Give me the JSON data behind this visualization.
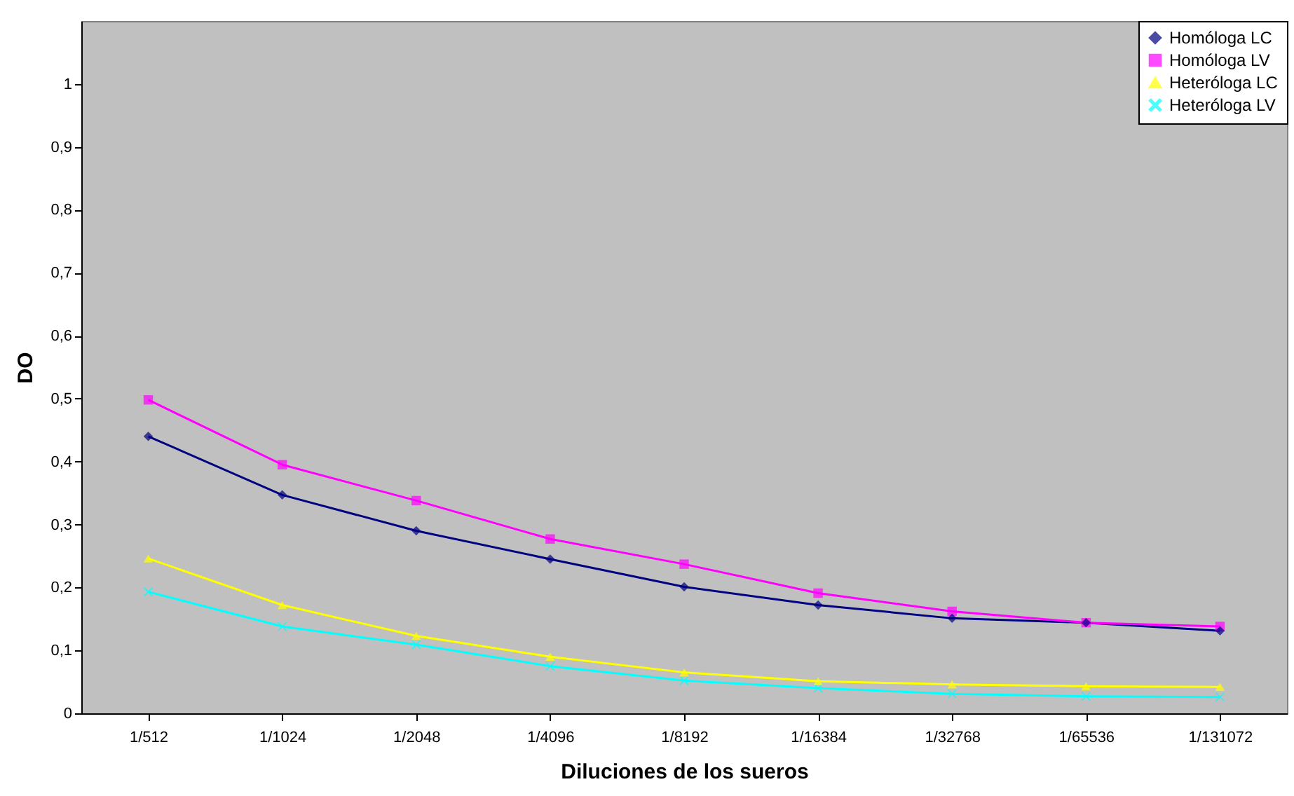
{
  "chart_data": {
    "type": "line",
    "xlabel": "Diluciones de los sueros",
    "ylabel": "DO",
    "categories": [
      "1/512",
      "1/1024",
      "1/2048",
      "1/4096",
      "1/8192",
      "1/16384",
      "1/32768",
      "1/65536",
      "1/131072"
    ],
    "series": [
      {
        "name": "Homóloga LC",
        "color": "#000080",
        "marker": "diamond",
        "values": [
          0.44,
          0.347,
          0.29,
          0.245,
          0.201,
          0.172,
          0.151,
          0.144,
          0.131
        ]
      },
      {
        "name": "Homóloga LV",
        "color": "#ff00ff",
        "marker": "square",
        "values": [
          0.498,
          0.395,
          0.338,
          0.277,
          0.237,
          0.191,
          0.162,
          0.144,
          0.138
        ]
      },
      {
        "name": "Heteróloga LC",
        "color": "#ffff00",
        "marker": "triangle",
        "values": [
          0.246,
          0.172,
          0.123,
          0.09,
          0.065,
          0.051,
          0.046,
          0.043,
          0.042
        ]
      },
      {
        "name": "Heteróloga LV",
        "color": "#00ffff",
        "marker": "cross",
        "values": [
          0.193,
          0.138,
          0.109,
          0.075,
          0.052,
          0.04,
          0.031,
          0.027,
          0.026
        ]
      }
    ],
    "ylim": [
      0,
      1.1
    ],
    "yticks": [
      0,
      {
        "value": 0.1,
        "label": "0,1"
      },
      {
        "value": 0.2,
        "label": "0,2"
      },
      {
        "value": 0.3,
        "label": "0,3"
      },
      {
        "value": 0.4,
        "label": "0,4"
      },
      {
        "value": 0.5,
        "label": "0,5"
      },
      {
        "value": 0.6,
        "label": "0,6"
      },
      {
        "value": 0.7,
        "label": "0,7"
      },
      {
        "value": 0.8,
        "label": "0,8"
      },
      {
        "value": 0.9,
        "label": "0,9"
      },
      1
    ],
    "grid": false,
    "legend": "top right",
    "line_style": "solid"
  }
}
